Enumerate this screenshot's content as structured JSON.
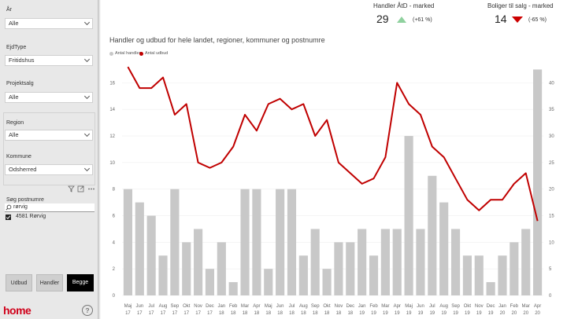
{
  "sidebar": {
    "filters": [
      {
        "label": "År",
        "value": "Alle"
      },
      {
        "label": "EjdType",
        "value": "Fritidshus"
      },
      {
        "label": "Projektsalg",
        "value": "Alle"
      },
      {
        "label": "Region",
        "value": "Alle"
      },
      {
        "label": "Kommune",
        "value": "Odsherred"
      }
    ],
    "postnr_label": "Søg postnumre",
    "postnr_value": "rørvig",
    "postnr_option": "4581 Rørvig",
    "buttons": [
      "Udbud",
      "Handler",
      "Begge"
    ],
    "logo": "home",
    "help": "?"
  },
  "kpis": [
    {
      "title": "Handler ÅtD - marked",
      "value": "29",
      "change": "(+61 %)",
      "direction": "up",
      "color": "#8fd19e"
    },
    {
      "title": "Boliger til salg - marked",
      "value": "14",
      "change": "(-65 %)",
      "direction": "down",
      "color": "#cc0000"
    }
  ],
  "chart_data": {
    "type": "bar+line",
    "title": "Handler og udbud for hele landet, regioner, kommuner og postnumre",
    "categories": [
      "Maj 17",
      "Jun 17",
      "Jul 17",
      "Aug 17",
      "Sep 17",
      "Okt 17",
      "Nov 17",
      "Dec 17",
      "Jan 18",
      "Feb 18",
      "Mar 18",
      "Apr 18",
      "Maj 18",
      "Jun 18",
      "Jul 18",
      "Aug 18",
      "Sep 18",
      "Okt 18",
      "Nov 18",
      "Dec 18",
      "Jan 19",
      "Feb 19",
      "Mar 19",
      "Apr 19",
      "Maj 19",
      "Jun 19",
      "Jul 19",
      "Aug 19",
      "Sep 19",
      "Okt 19",
      "Nov 19",
      "Dec 19",
      "Jan 20",
      "Feb 20",
      "Mar 20",
      "Apr 20"
    ],
    "month_labels": [
      "Maj",
      "Jun",
      "Jul",
      "Aug",
      "Sep",
      "Okt",
      "Nov",
      "Dec",
      "Jan",
      "Feb",
      "Mar",
      "Apr",
      "Maj",
      "Jun",
      "Jul",
      "Aug",
      "Sep",
      "Okt",
      "Nov",
      "Dec",
      "Jan",
      "Feb",
      "Mar",
      "Apr",
      "Maj",
      "Jun",
      "Jul",
      "Aug",
      "Sep",
      "Okt",
      "Nov",
      "Dec",
      "Jan",
      "Feb",
      "Mar",
      "Apr"
    ],
    "year_labels": [
      "17",
      "17",
      "17",
      "17",
      "17",
      "17",
      "17",
      "17",
      "18",
      "18",
      "18",
      "18",
      "18",
      "18",
      "18",
      "18",
      "18",
      "18",
      "18",
      "18",
      "19",
      "19",
      "19",
      "19",
      "19",
      "19",
      "19",
      "19",
      "19",
      "19",
      "19",
      "19",
      "20",
      "20",
      "20",
      "20"
    ],
    "series": [
      {
        "name": "Antal handler",
        "axis": "left",
        "color": "#c8c8c8",
        "values": [
          8,
          7,
          6,
          3,
          8,
          4,
          5,
          2,
          4,
          1,
          8,
          8,
          2,
          8,
          8,
          3,
          5,
          2,
          4,
          4,
          5,
          3,
          5,
          5,
          12,
          5,
          9,
          7,
          5,
          3,
          3,
          1,
          3,
          4,
          5,
          17
        ]
      },
      {
        "name": "Antal udbud",
        "axis": "right",
        "color": "#c00000",
        "values": [
          43,
          39,
          39,
          41,
          34,
          36,
          25,
          24,
          25,
          28,
          34,
          31,
          36,
          37,
          35,
          36,
          30,
          33,
          25,
          23,
          21,
          22,
          26,
          40,
          36,
          34,
          28,
          26,
          22,
          18,
          16,
          18,
          18,
          21,
          23,
          14
        ]
      }
    ],
    "y_left": {
      "min": 0,
      "max": 17.5,
      "ticks": [
        0,
        2,
        4,
        6,
        8,
        10,
        12,
        14,
        16
      ]
    },
    "y_right": {
      "min": 0,
      "max": 43.75,
      "ticks": [
        0,
        5,
        10,
        15,
        20,
        25,
        30,
        35,
        40
      ]
    },
    "legend_position": "top-left"
  }
}
